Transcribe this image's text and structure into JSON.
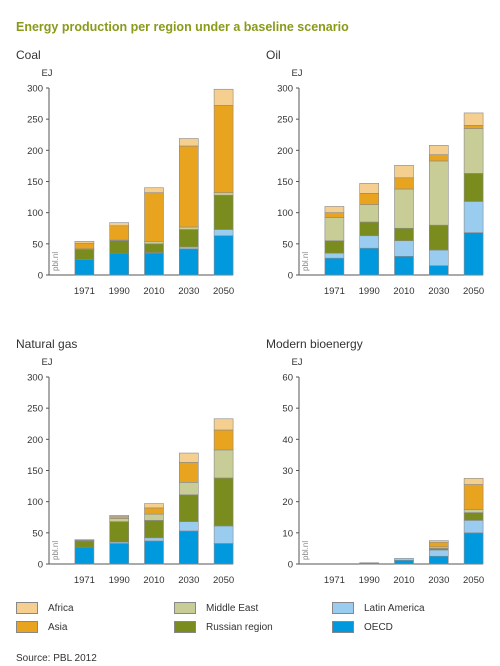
{
  "title": "Energy production per region under a baseline scenario",
  "source": "Source: PBL 2012",
  "watermark": "pbl.nl",
  "colors": {
    "OECD": "#0099dd",
    "Latin America": "#99ccee",
    "Russian region": "#7a8c1e",
    "Middle East": "#c8cc96",
    "Asia": "#e8a41e",
    "Africa": "#f5cf8f"
  },
  "legend": [
    "Africa",
    "Middle East",
    "Latin America",
    "Asia",
    "Russian region",
    "OECD"
  ],
  "chart_data": [
    {
      "type": "bar",
      "stacked": true,
      "title": "Coal",
      "ylabel": "EJ",
      "ylim": [
        0,
        300
      ],
      "yticks": [
        0,
        50,
        100,
        150,
        200,
        250,
        300
      ],
      "categories": [
        "1971",
        "1990",
        "2010",
        "2030",
        "2050"
      ],
      "series": [
        {
          "name": "OECD",
          "values": [
            25,
            35,
            35,
            42,
            63
          ]
        },
        {
          "name": "Latin America",
          "values": [
            0,
            0,
            1,
            3,
            10
          ]
        },
        {
          "name": "Russian region",
          "values": [
            16,
            20,
            14,
            28,
            55
          ]
        },
        {
          "name": "Middle East",
          "values": [
            1,
            1,
            4,
            4,
            4
          ]
        },
        {
          "name": "Asia",
          "values": [
            9,
            23,
            78,
            130,
            140
          ]
        },
        {
          "name": "Africa",
          "values": [
            3,
            5,
            8,
            12,
            26
          ]
        }
      ]
    },
    {
      "type": "bar",
      "stacked": true,
      "title": "Oil",
      "ylabel": "EJ",
      "ylim": [
        0,
        300
      ],
      "yticks": [
        0,
        50,
        100,
        150,
        200,
        250,
        300
      ],
      "categories": [
        "1971",
        "1990",
        "2010",
        "2030",
        "2050"
      ],
      "series": [
        {
          "name": "OECD",
          "values": [
            27,
            43,
            30,
            15,
            68
          ]
        },
        {
          "name": "Latin America",
          "values": [
            8,
            20,
            25,
            25,
            50
          ]
        },
        {
          "name": "Russian region",
          "values": [
            20,
            22,
            20,
            40,
            45
          ]
        },
        {
          "name": "Middle East",
          "values": [
            37,
            28,
            63,
            103,
            72
          ]
        },
        {
          "name": "Asia",
          "values": [
            8,
            18,
            18,
            10,
            5
          ]
        },
        {
          "name": "Africa",
          "values": [
            10,
            16,
            20,
            15,
            20
          ]
        }
      ]
    },
    {
      "type": "bar",
      "stacked": true,
      "title": "Natural gas",
      "ylabel": "EJ",
      "ylim": [
        0,
        300
      ],
      "yticks": [
        0,
        50,
        100,
        150,
        200,
        250,
        300
      ],
      "categories": [
        "1971",
        "1990",
        "2010",
        "2030",
        "2050"
      ],
      "series": [
        {
          "name": "OECD",
          "values": [
            27,
            33,
            37,
            53,
            33
          ]
        },
        {
          "name": "Latin America",
          "values": [
            0,
            2,
            5,
            15,
            28
          ]
        },
        {
          "name": "Russian region",
          "values": [
            10,
            33,
            28,
            43,
            77
          ]
        },
        {
          "name": "Middle East",
          "values": [
            1,
            5,
            10,
            20,
            45
          ]
        },
        {
          "name": "Asia",
          "values": [
            0,
            3,
            10,
            32,
            32
          ]
        },
        {
          "name": "Africa",
          "values": [
            1,
            2,
            7,
            15,
            18
          ]
        }
      ]
    },
    {
      "type": "bar",
      "stacked": true,
      "title": "Modern bioenergy",
      "ylabel": "EJ",
      "ylim": [
        0,
        60
      ],
      "yticks": [
        0,
        10,
        20,
        30,
        40,
        50,
        60
      ],
      "categories": [
        "1971",
        "1990",
        "2010",
        "2030",
        "2050"
      ],
      "series": [
        {
          "name": "OECD",
          "values": [
            0,
            0.3,
            1.2,
            2.5,
            10
          ]
        },
        {
          "name": "Latin America",
          "values": [
            0,
            0.1,
            0.6,
            2,
            4
          ]
        },
        {
          "name": "Russian region",
          "values": [
            0,
            0,
            0,
            0.5,
            2.5
          ]
        },
        {
          "name": "Middle East",
          "values": [
            0,
            0,
            0,
            0.5,
            1
          ]
        },
        {
          "name": "Asia",
          "values": [
            0,
            0,
            0,
            1.5,
            8
          ]
        },
        {
          "name": "Africa",
          "values": [
            0,
            0,
            0,
            0.5,
            2
          ]
        }
      ]
    }
  ]
}
